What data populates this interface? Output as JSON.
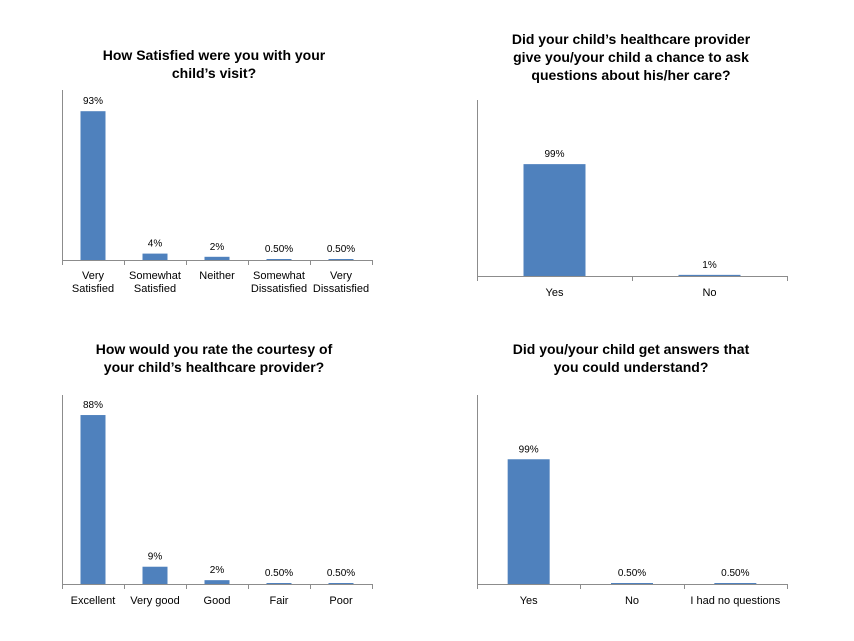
{
  "chart_data": [
    {
      "type": "bar",
      "title": [
        "How Satisfied were you with your",
        "child’s visit?"
      ],
      "categories": [
        [
          "Very",
          "Satisfied"
        ],
        [
          "Somewhat",
          "Satisfied"
        ],
        [
          "Neither"
        ],
        [
          "Somewhat",
          "Dissatisfied"
        ],
        [
          "Very",
          "Dissatisfied"
        ]
      ],
      "values": [
        93,
        4,
        2,
        0.5,
        0.5
      ],
      "data_labels": [
        "93%",
        "4%",
        "2%",
        "0.50%",
        "0.50%"
      ],
      "ylim": [
        0,
        100
      ],
      "color": "#4f81bd",
      "grid": false
    },
    {
      "type": "bar",
      "title": [
        "Did your child’s healthcare provider",
        "give you/your child a chance to ask",
        "questions about his/her care?"
      ],
      "categories": [
        [
          "Yes"
        ],
        [
          "No"
        ]
      ],
      "values": [
        99,
        1
      ],
      "data_labels": [
        "99%",
        "1%"
      ],
      "ylim": [
        0,
        100
      ],
      "color": "#4f81bd",
      "grid": false
    },
    {
      "type": "bar",
      "title": [
        "How would you rate the courtesy of",
        "your child’s healthcare provider?"
      ],
      "categories": [
        [
          "Excellent"
        ],
        [
          "Very good"
        ],
        [
          "Good"
        ],
        [
          "Fair"
        ],
        [
          "Poor"
        ]
      ],
      "values": [
        88,
        9,
        2,
        0.5,
        0.5
      ],
      "data_labels": [
        "88%",
        "9%",
        "2%",
        "0.50%",
        "0.50%"
      ],
      "ylim": [
        0,
        100
      ],
      "color": "#4f81bd",
      "grid": false
    },
    {
      "type": "bar",
      "title": [
        "Did you/your child get answers that",
        "you could understand?"
      ],
      "categories": [
        [
          "Yes"
        ],
        [
          "No"
        ],
        [
          "I had no questions"
        ]
      ],
      "values": [
        99,
        0.5,
        0.5
      ],
      "data_labels": [
        "99%",
        "0.50%",
        "0.50%"
      ],
      "ylim": [
        0,
        100
      ],
      "color": "#4f81bd",
      "grid": false
    }
  ]
}
